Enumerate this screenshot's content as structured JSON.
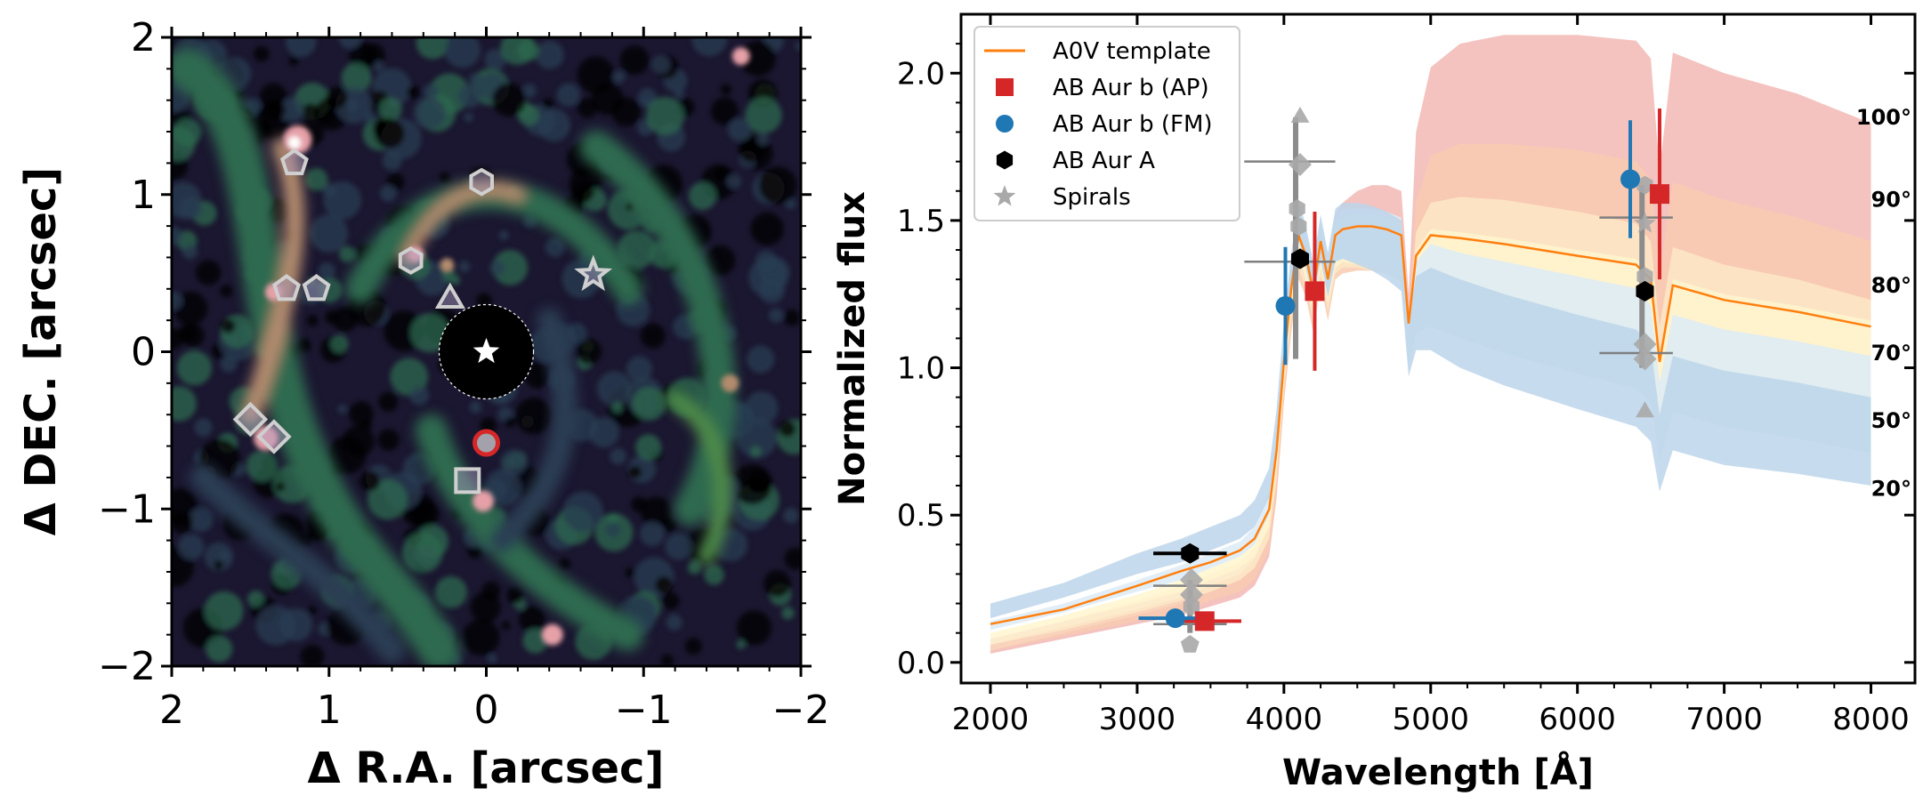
{
  "chart_data": [
    {
      "type": "image",
      "title": "",
      "xlabel": "Δ R.A. [arcsec]",
      "ylabel": "Δ DEC. [arcsec]",
      "xlim": [
        2,
        -2
      ],
      "ylim": [
        -2,
        2
      ],
      "x_ticks": [
        2,
        1,
        0,
        -1,
        -2
      ],
      "y_ticks": [
        -2,
        -1,
        0,
        1,
        2
      ],
      "x_tick_labels": [
        "2",
        "1",
        "0",
        "−1",
        "−2"
      ],
      "y_tick_labels": [
        "−2",
        "−1",
        "0",
        "1",
        "2"
      ],
      "colormap": [
        "#000000",
        "#1b1730",
        "#2a3e52",
        "#2f6a4f",
        "#4d8a4a",
        "#b38b6e",
        "#e6a0a8",
        "#ffffff"
      ],
      "star": {
        "x": 0.0,
        "y": 0.0,
        "marker": "star",
        "color": "#ffffff"
      },
      "mask_radius": 0.3,
      "planet": {
        "label": "AB Aur b",
        "x": 0.0,
        "y": -0.58,
        "marker": "circle",
        "color": "#d62728"
      },
      "spiral_markers": [
        {
          "marker": "pentagon",
          "x": 1.22,
          "y": 1.2
        },
        {
          "marker": "hexagon",
          "x": 0.03,
          "y": 1.08
        },
        {
          "marker": "hexagon",
          "x": 0.48,
          "y": 0.58
        },
        {
          "marker": "star",
          "x": -0.68,
          "y": 0.49
        },
        {
          "marker": "pentagon",
          "x": 1.27,
          "y": 0.4
        },
        {
          "marker": "pentagon",
          "x": 1.08,
          "y": 0.4
        },
        {
          "marker": "triangle",
          "x": 0.23,
          "y": 0.33
        },
        {
          "marker": "diamond",
          "x": 1.5,
          "y": -0.43
        },
        {
          "marker": "diamond",
          "x": 1.35,
          "y": -0.54
        },
        {
          "marker": "square",
          "x": 0.12,
          "y": -0.82
        }
      ]
    },
    {
      "type": "line",
      "title": "",
      "xlabel": "Wavelength [Å]",
      "ylabel": "Normalized flux",
      "xlim": [
        1800,
        8300
      ],
      "ylim": [
        -0.07,
        2.2
      ],
      "x_ticks": [
        2000,
        3000,
        4000,
        5000,
        6000,
        7000,
        8000
      ],
      "y_ticks": [
        0.0,
        0.5,
        1.0,
        1.5,
        2.0
      ],
      "x_tick_labels": [
        "2000",
        "3000",
        "4000",
        "5000",
        "6000",
        "7000",
        "8000"
      ],
      "y_tick_labels": [
        "0.0",
        "0.5",
        "1.0",
        "1.5",
        "2.0"
      ],
      "legend": {
        "placement": "top-left",
        "entries": [
          {
            "label": "A0V template",
            "color": "#ff7f0e",
            "marker": "line"
          },
          {
            "label": "AB Aur b (AP)",
            "color": "#d62728",
            "marker": "square"
          },
          {
            "label": "AB Aur b (FM)",
            "color": "#1f77b4",
            "marker": "circle"
          },
          {
            "label": "AB Aur A",
            "color": "#000000",
            "marker": "hexagon"
          },
          {
            "label": "Spirals",
            "color": "#a9a9a9",
            "marker": "star"
          }
        ]
      },
      "x": [
        2000,
        2500,
        3000,
        3300,
        3500,
        3700,
        3800,
        3900,
        3950,
        4000,
        4050,
        4100,
        4150,
        4200,
        4250,
        4300,
        4350,
        4400,
        4500,
        4600,
        4700,
        4800,
        4850,
        4900,
        5000,
        5200,
        5500,
        6000,
        6400,
        6500,
        6560,
        6650,
        7000,
        7500,
        8000
      ],
      "series": [
        {
          "name": "A0V template",
          "color": "#ff7f0e",
          "values": [
            0.13,
            0.18,
            0.26,
            0.31,
            0.34,
            0.38,
            0.42,
            0.52,
            0.72,
            1.02,
            1.27,
            1.45,
            1.38,
            1.26,
            1.43,
            1.3,
            1.45,
            1.47,
            1.48,
            1.48,
            1.47,
            1.45,
            1.15,
            1.38,
            1.45,
            1.44,
            1.42,
            1.38,
            1.35,
            1.3,
            1.02,
            1.28,
            1.23,
            1.19,
            1.14
          ]
        }
      ],
      "bands": [
        {
          "label": "100°",
          "color": "#f2b8b4",
          "opacity": 0.85,
          "lower": [
            0.03,
            0.08,
            0.13,
            0.16,
            0.19,
            0.22,
            0.26,
            0.36,
            0.56,
            0.88,
            1.15,
            1.34,
            1.3,
            1.16,
            1.34,
            1.2,
            1.36,
            1.39,
            1.41,
            1.42,
            1.41,
            1.39,
            1.09,
            1.32,
            1.39,
            1.38,
            1.36,
            1.32,
            1.29,
            1.24,
            0.97,
            1.22,
            1.17,
            1.13,
            1.08
          ],
          "upper": [
            0.04,
            0.1,
            0.16,
            0.2,
            0.24,
            0.28,
            0.32,
            0.44,
            0.68,
            1.02,
            1.27,
            1.46,
            1.42,
            1.3,
            1.47,
            1.35,
            1.52,
            1.56,
            1.6,
            1.62,
            1.62,
            1.6,
            1.25,
            1.8,
            2.02,
            2.1,
            2.13,
            2.13,
            2.11,
            2.05,
            1.67,
            2.07,
            2.0,
            1.93,
            1.83
          ]
        },
        {
          "label": "90°",
          "color": "#f8cbb0",
          "opacity": 0.85,
          "lower": [
            0.04,
            0.09,
            0.14,
            0.17,
            0.21,
            0.24,
            0.28,
            0.38,
            0.58,
            0.88,
            1.12,
            1.3,
            1.24,
            1.12,
            1.28,
            1.16,
            1.3,
            1.32,
            1.33,
            1.33,
            1.32,
            1.3,
            1.03,
            1.22,
            1.28,
            1.26,
            1.24,
            1.2,
            1.17,
            1.12,
            0.88,
            1.1,
            1.06,
            1.02,
            0.97
          ],
          "upper": [
            0.06,
            0.12,
            0.18,
            0.22,
            0.26,
            0.3,
            0.35,
            0.47,
            0.7,
            1.02,
            1.27,
            1.45,
            1.38,
            1.26,
            1.43,
            1.3,
            1.45,
            1.47,
            1.48,
            1.48,
            1.47,
            1.45,
            1.15,
            1.56,
            1.72,
            1.76,
            1.76,
            1.74,
            1.7,
            1.64,
            1.32,
            1.63,
            1.57,
            1.51,
            1.43
          ]
        },
        {
          "label": "80°",
          "color": "#fde7c6",
          "opacity": 0.85,
          "lower": [
            0.06,
            0.11,
            0.17,
            0.21,
            0.24,
            0.28,
            0.32,
            0.42,
            0.62,
            0.92,
            1.16,
            1.34,
            1.27,
            1.16,
            1.31,
            1.19,
            1.32,
            1.34,
            1.34,
            1.33,
            1.32,
            1.3,
            1.02,
            1.2,
            1.24,
            1.22,
            1.19,
            1.14,
            1.1,
            1.06,
            0.82,
            1.03,
            0.98,
            0.94,
            0.89
          ],
          "upper": [
            0.08,
            0.14,
            0.21,
            0.26,
            0.3,
            0.34,
            0.39,
            0.51,
            0.74,
            1.06,
            1.3,
            1.48,
            1.4,
            1.28,
            1.45,
            1.32,
            1.47,
            1.49,
            1.5,
            1.5,
            1.49,
            1.47,
            1.16,
            1.46,
            1.56,
            1.58,
            1.57,
            1.53,
            1.49,
            1.43,
            1.14,
            1.41,
            1.35,
            1.3,
            1.23
          ]
        },
        {
          "label": "70°",
          "color": "#fff6cf",
          "opacity": 0.85,
          "lower": [
            0.08,
            0.14,
            0.2,
            0.24,
            0.28,
            0.32,
            0.36,
            0.46,
            0.66,
            0.96,
            1.2,
            1.38,
            1.3,
            1.19,
            1.34,
            1.22,
            1.34,
            1.36,
            1.35,
            1.34,
            1.32,
            1.3,
            1.01,
            1.16,
            1.2,
            1.17,
            1.13,
            1.07,
            1.03,
            0.98,
            0.76,
            0.95,
            0.9,
            0.86,
            0.81
          ],
          "upper": [
            0.1,
            0.16,
            0.23,
            0.28,
            0.32,
            0.36,
            0.41,
            0.53,
            0.76,
            1.08,
            1.32,
            1.5,
            1.42,
            1.3,
            1.47,
            1.34,
            1.49,
            1.51,
            1.52,
            1.52,
            1.51,
            1.49,
            1.17,
            1.4,
            1.47,
            1.46,
            1.44,
            1.4,
            1.37,
            1.31,
            1.04,
            1.3,
            1.25,
            1.21,
            1.16
          ]
        },
        {
          "label": "50°",
          "color": "#dcebf6",
          "opacity": 0.85,
          "lower": [
            0.11,
            0.17,
            0.24,
            0.28,
            0.32,
            0.36,
            0.4,
            0.5,
            0.7,
            1.0,
            1.24,
            1.42,
            1.33,
            1.22,
            1.36,
            1.24,
            1.36,
            1.37,
            1.36,
            1.34,
            1.32,
            1.29,
            1.0,
            1.12,
            1.14,
            1.1,
            1.05,
            0.98,
            0.93,
            0.88,
            0.68,
            0.85,
            0.8,
            0.76,
            0.71
          ],
          "upper": [
            0.14,
            0.2,
            0.28,
            0.33,
            0.37,
            0.41,
            0.46,
            0.58,
            0.8,
            1.12,
            1.36,
            1.54,
            1.46,
            1.34,
            1.5,
            1.37,
            1.52,
            1.54,
            1.54,
            1.54,
            1.53,
            1.51,
            1.18,
            1.36,
            1.42,
            1.39,
            1.36,
            1.31,
            1.27,
            1.21,
            0.95,
            1.18,
            1.13,
            1.09,
            1.04
          ]
        },
        {
          "label": "20°",
          "color": "#bcd5ea",
          "opacity": 0.85,
          "lower": [
            0.15,
            0.22,
            0.3,
            0.34,
            0.38,
            0.42,
            0.46,
            0.56,
            0.75,
            1.04,
            1.27,
            1.44,
            1.34,
            1.23,
            1.37,
            1.24,
            1.36,
            1.37,
            1.35,
            1.33,
            1.3,
            1.26,
            0.97,
            1.06,
            1.06,
            1.0,
            0.94,
            0.86,
            0.8,
            0.75,
            0.58,
            0.72,
            0.67,
            0.64,
            0.6
          ],
          "upper": [
            0.2,
            0.27,
            0.37,
            0.42,
            0.46,
            0.5,
            0.55,
            0.66,
            0.86,
            1.16,
            1.39,
            1.57,
            1.48,
            1.36,
            1.52,
            1.39,
            1.54,
            1.56,
            1.56,
            1.55,
            1.53,
            1.5,
            1.17,
            1.31,
            1.34,
            1.3,
            1.25,
            1.18,
            1.13,
            1.07,
            0.84,
            1.04,
            0.99,
            0.95,
            0.9
          ]
        }
      ],
      "points": [
        {
          "series": "AB Aur b (AP)",
          "marker": "square",
          "color": "#d62728",
          "x": 3460,
          "y": 0.14,
          "xerr": 250,
          "yerr": 0.02
        },
        {
          "series": "AB Aur b (AP)",
          "marker": "square",
          "color": "#d62728",
          "x": 4210,
          "y": 1.26,
          "xerr": 0,
          "yerr": 0.27
        },
        {
          "series": "AB Aur b (AP)",
          "marker": "square",
          "color": "#d62728",
          "x": 6560,
          "y": 1.59,
          "xerr": 0,
          "yerr": 0.29
        },
        {
          "series": "AB Aur b (FM)",
          "marker": "circle",
          "color": "#1f77b4",
          "x": 3260,
          "y": 0.15,
          "xerr": 250,
          "yerr": 0.02
        },
        {
          "series": "AB Aur b (FM)",
          "marker": "circle",
          "color": "#1f77b4",
          "x": 4010,
          "y": 1.21,
          "xerr": 0,
          "yerr": 0.2
        },
        {
          "series": "AB Aur b (FM)",
          "marker": "circle",
          "color": "#1f77b4",
          "x": 6360,
          "y": 1.64,
          "xerr": 0,
          "yerr": 0.2
        },
        {
          "series": "AB Aur A",
          "marker": "hexagon",
          "color": "#000000",
          "x": 3360,
          "y": 0.37,
          "xerr": 250,
          "yerr": 0.0
        },
        {
          "series": "AB Aur A",
          "marker": "hexagon",
          "color": "#000000",
          "x": 4110,
          "y": 1.37,
          "xerr": 0,
          "yerr": 0.0
        },
        {
          "series": "AB Aur A",
          "marker": "hexagon",
          "color": "#000000",
          "x": 6460,
          "y": 1.26,
          "xerr": 0,
          "yerr": 0.0
        },
        {
          "series": "Spirals",
          "marker": "triangle",
          "color": "#a9a9a9",
          "x": 4110,
          "y": 1.85
        },
        {
          "series": "Spirals",
          "marker": "diamond",
          "color": "#a9a9a9",
          "x": 4110,
          "y": 1.69
        },
        {
          "series": "Spirals",
          "marker": "hexagon",
          "color": "#a9a9a9",
          "x": 4090,
          "y": 1.54
        },
        {
          "series": "Spirals",
          "marker": "hexagon",
          "color": "#a9a9a9",
          "x": 4100,
          "y": 1.48
        },
        {
          "series": "Spirals",
          "marker": "diamond",
          "color": "#a9a9a9",
          "x": 3370,
          "y": 0.28
        },
        {
          "series": "Spirals",
          "marker": "diamond",
          "color": "#a9a9a9",
          "x": 3370,
          "y": 0.23
        },
        {
          "series": "Spirals",
          "marker": "hexagon",
          "color": "#a9a9a9",
          "x": 3370,
          "y": 0.19
        },
        {
          "series": "Spirals",
          "marker": "pentagon",
          "color": "#a9a9a9",
          "x": 3360,
          "y": 0.06
        },
        {
          "series": "Spirals",
          "marker": "hexagon",
          "color": "#a9a9a9",
          "x": 6460,
          "y": 1.62
        },
        {
          "series": "Spirals",
          "marker": "star",
          "color": "#a9a9a9",
          "x": 6460,
          "y": 1.49
        },
        {
          "series": "Spirals",
          "marker": "hexagon",
          "color": "#a9a9a9",
          "x": 6460,
          "y": 1.31
        },
        {
          "series": "Spirals",
          "marker": "diamond",
          "color": "#a9a9a9",
          "x": 6460,
          "y": 1.08
        },
        {
          "series": "Spirals",
          "marker": "diamond",
          "color": "#a9a9a9",
          "x": 6460,
          "y": 1.03
        },
        {
          "series": "Spirals",
          "marker": "triangle",
          "color": "#a9a9a9",
          "x": 6460,
          "y": 0.85
        }
      ],
      "spiral_bars": [
        {
          "x": 4040,
          "y": 1.7,
          "xerr": 310
        },
        {
          "x": 4040,
          "y": 1.36,
          "xerr": 310
        },
        {
          "x": 3360,
          "y": 0.26,
          "xerr": 250
        },
        {
          "x": 3360,
          "y": 0.13,
          "xerr": 250
        },
        {
          "x": 6400,
          "y": 1.51,
          "xerr": 250
        },
        {
          "x": 6400,
          "y": 1.05,
          "xerr": 250
        }
      ]
    }
  ]
}
